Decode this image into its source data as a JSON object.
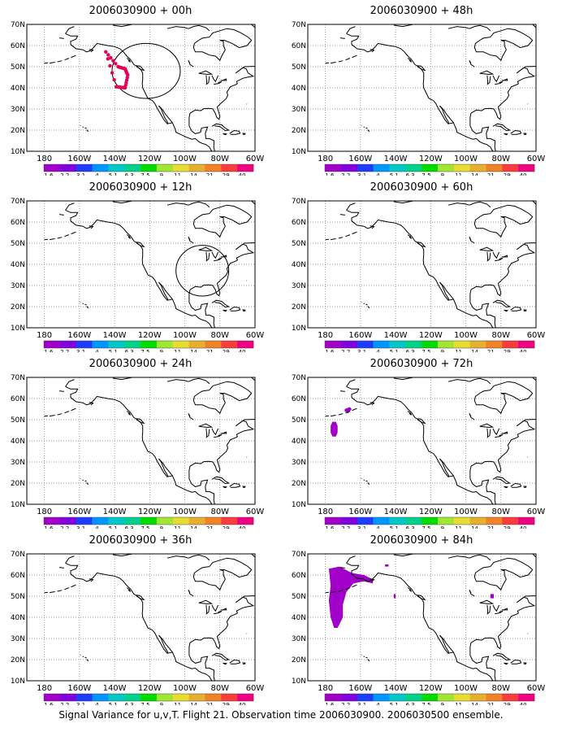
{
  "panels": [
    {
      "title": "2006030900 + 00h",
      "flight_track": true,
      "circle": {
        "lon": -122,
        "lat": 48,
        "r_deg": 13
      },
      "signal_regions": []
    },
    {
      "title": "2006030900 + 12h",
      "flight_track": false,
      "circle": {
        "lon": -90,
        "lat": 37,
        "r_deg": 12
      },
      "signal_regions": []
    },
    {
      "title": "2006030900 + 24h",
      "flight_track": false,
      "circle": null,
      "signal_regions": []
    },
    {
      "title": "2006030900 + 36h",
      "flight_track": false,
      "circle": null,
      "signal_regions": []
    },
    {
      "title": "2006030900 + 48h",
      "flight_track": false,
      "circle": null,
      "signal_regions": []
    },
    {
      "title": "2006030900 + 60h",
      "flight_track": false,
      "circle": null,
      "signal_regions": []
    },
    {
      "title": "2006030900 + 72h",
      "flight_track": false,
      "circle": null,
      "signal_regions": [
        [
          [
            -176,
            49
          ],
          [
            -174,
            49
          ],
          [
            -173,
            47
          ],
          [
            -173,
            44
          ],
          [
            -174,
            42
          ],
          [
            -176,
            42
          ],
          [
            -177,
            44
          ],
          [
            -177,
            47
          ]
        ],
        [
          [
            -169,
            55
          ],
          [
            -166,
            56
          ],
          [
            -165,
            55
          ],
          [
            -167,
            53
          ],
          [
            -169,
            54
          ]
        ]
      ]
    },
    {
      "title": "2006030900 + 84h",
      "flight_track": false,
      "circle": null,
      "signal_regions": [
        [
          [
            -178,
            63
          ],
          [
            -172,
            64
          ],
          [
            -165,
            61
          ],
          [
            -158,
            60
          ],
          [
            -153,
            58
          ],
          [
            -153,
            56
          ],
          [
            -158,
            57
          ],
          [
            -164,
            56
          ],
          [
            -168,
            52
          ],
          [
            -170,
            46
          ],
          [
            -170,
            40
          ],
          [
            -173,
            35
          ],
          [
            -175,
            35
          ],
          [
            -177,
            40
          ],
          [
            -178,
            48
          ],
          [
            -177,
            55
          ]
        ],
        [
          [
            -146,
            65
          ],
          [
            -144,
            65
          ],
          [
            -144,
            64
          ],
          [
            -146,
            64
          ]
        ],
        [
          [
            -86,
            51
          ],
          [
            -84,
            51
          ],
          [
            -84,
            49
          ],
          [
            -86,
            49
          ]
        ],
        [
          [
            -141,
            51
          ],
          [
            -140,
            51
          ],
          [
            -140,
            49
          ],
          [
            -141,
            49
          ]
        ]
      ]
    }
  ],
  "map": {
    "lat_labels": [
      "70N",
      "60N",
      "50N",
      "40N",
      "30N",
      "20N",
      "10N"
    ],
    "lon_labels": [
      "180",
      "160W",
      "140W",
      "120W",
      "100W",
      "80W",
      "60W"
    ],
    "lat_min": 10,
    "lat_max": 70,
    "lon_min": -190,
    "lon_max": -60
  },
  "colorbar": {
    "labels": [
      "1.6",
      "2.2",
      "3.1",
      "4",
      "5.1",
      "6.3",
      "7.5",
      "9",
      "11",
      "14",
      "21",
      "29",
      "40"
    ],
    "colors": [
      "#a000c8",
      "#8200dc",
      "#1e3cff",
      "#0096ff",
      "#00c8c8",
      "#00d28c",
      "#00dc00",
      "#a0e632",
      "#e6dc32",
      "#e6af2d",
      "#f08228",
      "#fa3c3c",
      "#f00082"
    ]
  },
  "signal_color": "#a000c8",
  "track_color": "#e6005a",
  "footer": "Signal Variance for u,v,T. Flight 21. Observation time 2006030900. 2006030500 ensemble."
}
